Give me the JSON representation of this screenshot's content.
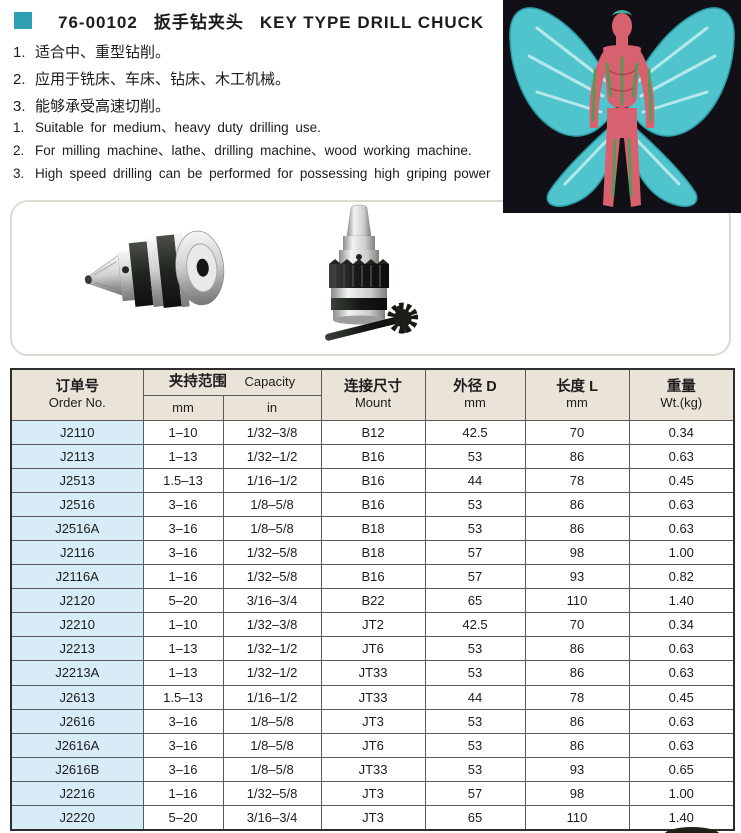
{
  "header": {
    "code": "76-00102",
    "title_zh": "扳手钻夹头",
    "title_en": "KEY TYPE DRILL CHUCK"
  },
  "features_zh": [
    {
      "num": "1.",
      "text": "适合中、重型钻削。"
    },
    {
      "num": "2.",
      "text": "应用于铣床、车床、钻床、木工机械。"
    },
    {
      "num": "3.",
      "text": "能够承受高速切削。"
    }
  ],
  "features_en": [
    {
      "num": "1.",
      "text": "Suitable for medium、heavy duty drilling use."
    },
    {
      "num": "2.",
      "text": "For milling machine、lathe、drilling machine、wood working machine."
    },
    {
      "num": "3.",
      "text": "High speed drilling can be performed for possessing high griping power"
    }
  ],
  "images": {
    "product_left": "key-type drill chuck lying on side",
    "product_right": "key-type drill chuck upright with chuck key",
    "photo": "body-painted figure with teal butterfly wings"
  },
  "table": {
    "header": {
      "order_zh": "订单号",
      "order_en": "Order No.",
      "capacity_zh": "夹持范围",
      "capacity_en": "Capacity",
      "sub_mm": "mm",
      "sub_in": "in",
      "mount_zh": "连接尺寸",
      "mount_en": "Mount",
      "od_zh": "外径 D",
      "od_en": "mm",
      "len_zh": "长度 L",
      "len_en": "mm",
      "wt_zh": "重量",
      "wt_en": "Wt.(kg)"
    },
    "rows": [
      [
        "J2110",
        "1–10",
        "1/32–3/8",
        "B12",
        "42.5",
        "70",
        "0.34"
      ],
      [
        "J2113",
        "1–13",
        "1/32–1/2",
        "B16",
        "53",
        "86",
        "0.63"
      ],
      [
        "J2513",
        "1.5–13",
        "1/16–1/2",
        "B16",
        "44",
        "78",
        "0.45"
      ],
      [
        "J2516",
        "3–16",
        "1/8–5/8",
        "B16",
        "53",
        "86",
        "0.63"
      ],
      [
        "J2516A",
        "3–16",
        "1/8–5/8",
        "B18",
        "53",
        "86",
        "0.63"
      ],
      [
        "J2116",
        "3–16",
        "1/32–5/8",
        "B18",
        "57",
        "98",
        "1.00"
      ],
      [
        "J2116A",
        "1–16",
        "1/32–5/8",
        "B16",
        "57",
        "93",
        "0.82"
      ],
      [
        "J2120",
        "5–20",
        "3/16–3/4",
        "B22",
        "65",
        "110",
        "1.40"
      ],
      [
        "J2210",
        "1–10",
        "1/32–3/8",
        "JT2",
        "42.5",
        "70",
        "0.34"
      ],
      [
        "J2213",
        "1–13",
        "1/32–1/2",
        "JT6",
        "53",
        "86",
        "0.63"
      ],
      [
        "J2213A",
        "1–13",
        "1/32–1/2",
        "JT33",
        "53",
        "86",
        "0.63"
      ],
      [
        "J2613",
        "1.5–13",
        "1/16–1/2",
        "JT33",
        "44",
        "78",
        "0.45"
      ],
      [
        "J2616",
        "3–16",
        "1/8–5/8",
        "JT3",
        "53",
        "86",
        "0.63"
      ],
      [
        "J2616A",
        "3–16",
        "1/8–5/8",
        "JT6",
        "53",
        "86",
        "0.63"
      ],
      [
        "J2616B",
        "3–16",
        "1/8–5/8",
        "JT33",
        "53",
        "93",
        "0.65"
      ],
      [
        "J2216",
        "1–16",
        "1/32–5/8",
        "JT3",
        "57",
        "98",
        "1.00"
      ],
      [
        "J2220",
        "5–20",
        "3/16–3/4",
        "JT3",
        "65",
        "110",
        "1.40"
      ]
    ]
  },
  "colors": {
    "accent": "#2e9fb3",
    "table_header_bg": "#e9e4d7",
    "order_col_bg": "#d7ecf7",
    "table_border": "#2e2e2e",
    "photo_bg": "#101016",
    "wing_teal": "#4fc4cc",
    "body_red": "#d8616f"
  }
}
